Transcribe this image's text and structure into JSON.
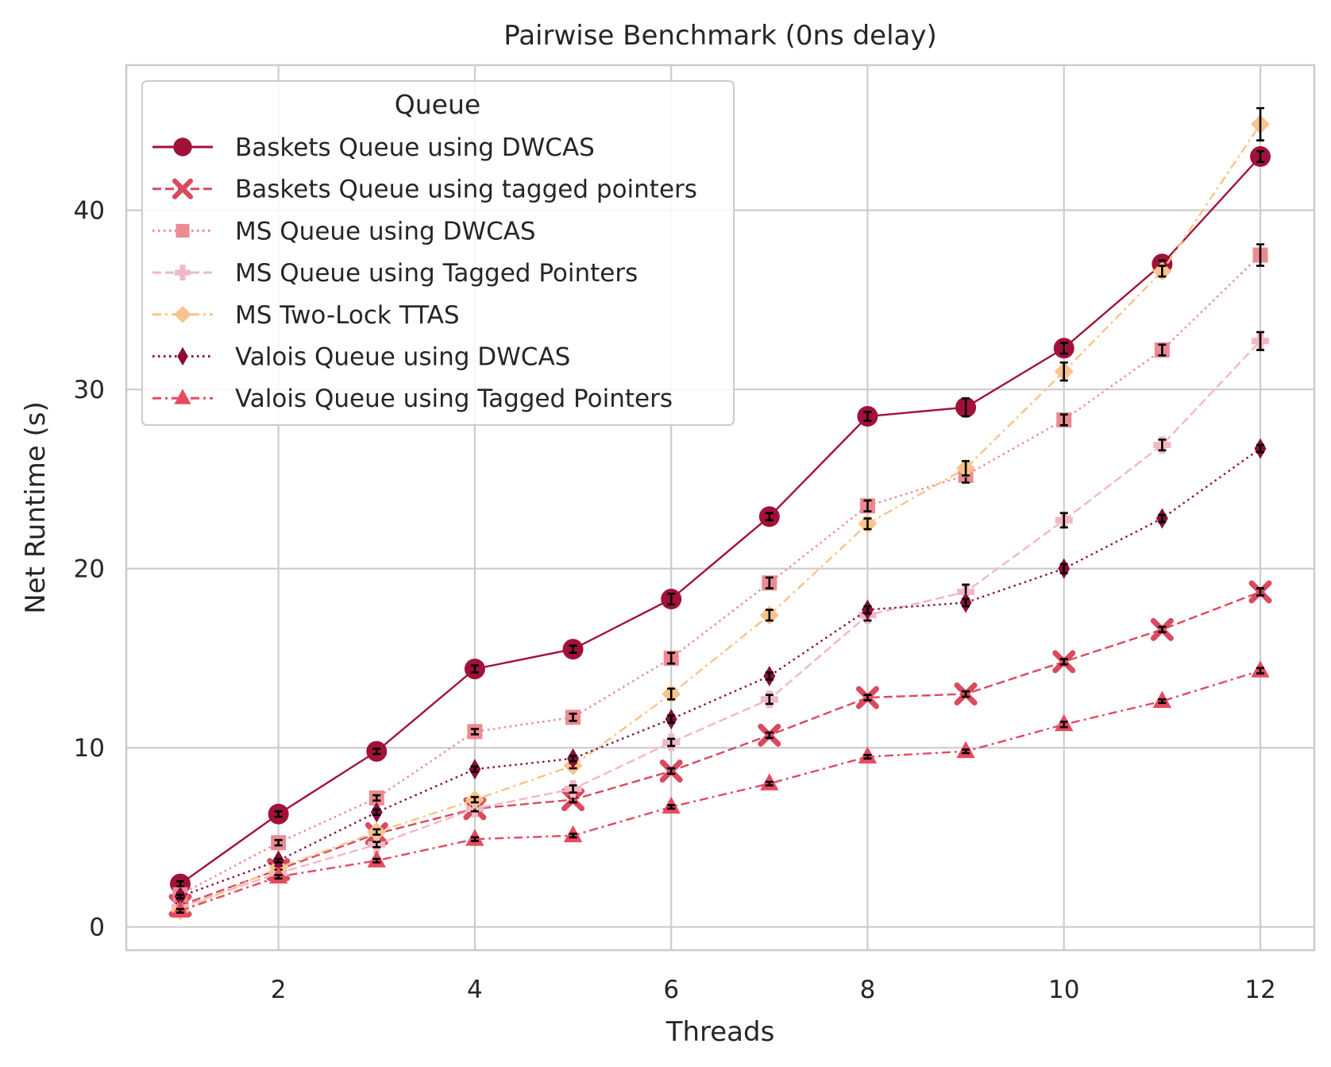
{
  "chart_data": {
    "type": "line",
    "title": "Pairwise Benchmark (0ns delay)",
    "xlabel": "Threads",
    "ylabel": "Net Runtime (s)",
    "x": [
      1,
      2,
      3,
      4,
      5,
      6,
      7,
      8,
      9,
      10,
      11,
      12
    ],
    "xlim": [
      0.45,
      12.55
    ],
    "ylim": [
      -1.3,
      48.1
    ],
    "xticks": [
      2,
      4,
      6,
      8,
      10,
      12
    ],
    "yticks": [
      0,
      10,
      20,
      30,
      40
    ],
    "grid": true,
    "legend": {
      "title": "Queue",
      "placement": "top-left"
    },
    "error_bars": true,
    "series": [
      {
        "name": "Baskets Queue using DWCAS",
        "color": "#a0123a",
        "marker": "circle",
        "dash": "solid",
        "values": [
          2.4,
          6.3,
          9.8,
          14.4,
          15.5,
          18.3,
          22.9,
          28.5,
          29.0,
          32.3,
          37.0,
          43.0
        ],
        "errors": [
          0.15,
          0.15,
          0.15,
          0.2,
          0.2,
          0.3,
          0.2,
          0.25,
          0.5,
          0.3,
          0.2,
          0.3
        ]
      },
      {
        "name": "Baskets Queue using tagged pointers",
        "color": "#d94a5e",
        "marker": "x",
        "dash": "dashed",
        "values": [
          1.2,
          3.2,
          5.2,
          6.6,
          7.1,
          8.7,
          10.7,
          12.8,
          13.0,
          14.8,
          16.6,
          18.7
        ],
        "errors": [
          0.1,
          0.1,
          0.1,
          0.15,
          0.15,
          0.15,
          0.15,
          0.15,
          0.15,
          0.15,
          0.15,
          0.2
        ]
      },
      {
        "name": "MS Queue using DWCAS",
        "color": "#ec8a91",
        "marker": "square",
        "dash": "dotted",
        "values": [
          1.8,
          4.7,
          7.2,
          10.9,
          11.7,
          15.0,
          19.2,
          23.5,
          25.2,
          28.3,
          32.2,
          37.5
        ],
        "errors": [
          0.1,
          0.15,
          0.15,
          0.15,
          0.2,
          0.3,
          0.3,
          0.3,
          0.4,
          0.3,
          0.3,
          0.6
        ]
      },
      {
        "name": "MS Queue using Tagged Pointers",
        "color": "#f2b7c4",
        "marker": "plus",
        "dash": "dashed",
        "values": [
          1.1,
          3.0,
          4.6,
          6.6,
          7.7,
          10.3,
          12.7,
          17.4,
          18.7,
          22.7,
          26.9,
          32.7
        ],
        "errors": [
          0.1,
          0.1,
          0.15,
          0.15,
          0.2,
          0.2,
          0.25,
          0.3,
          0.4,
          0.4,
          0.3,
          0.5
        ]
      },
      {
        "name": "MS Two-Lock TTAS",
        "color": "#f9c38b",
        "marker": "diamond",
        "dash": "dashdot",
        "values": [
          0.9,
          3.3,
          5.3,
          7.1,
          9.0,
          13.0,
          17.4,
          22.5,
          25.6,
          31.0,
          36.6,
          44.8
        ],
        "errors": [
          0.1,
          0.1,
          0.15,
          0.15,
          0.15,
          0.3,
          0.3,
          0.3,
          0.4,
          0.5,
          0.3,
          0.9
        ]
      },
      {
        "name": "Valois Queue using DWCAS",
        "color": "#8c0c3a",
        "marker": "thin-diamond",
        "dash": "dotted",
        "values": [
          1.7,
          3.7,
          6.4,
          8.8,
          9.4,
          11.6,
          14.0,
          17.7,
          18.1,
          20.0,
          22.8,
          26.7
        ],
        "errors": [
          0.1,
          0.1,
          0.15,
          0.15,
          0.15,
          0.2,
          0.2,
          0.2,
          0.2,
          0.25,
          0.2,
          0.2
        ]
      },
      {
        "name": "Valois Queue using Tagged Pointers",
        "color": "#e64a60",
        "marker": "triangle",
        "dash": "dashdot",
        "values": [
          0.9,
          2.8,
          3.7,
          4.9,
          5.1,
          6.7,
          8.0,
          9.5,
          9.8,
          11.3,
          12.6,
          14.3
        ],
        "errors": [
          0.1,
          0.1,
          0.1,
          0.1,
          0.1,
          0.1,
          0.1,
          0.1,
          0.1,
          0.15,
          0.1,
          0.15
        ]
      }
    ]
  }
}
